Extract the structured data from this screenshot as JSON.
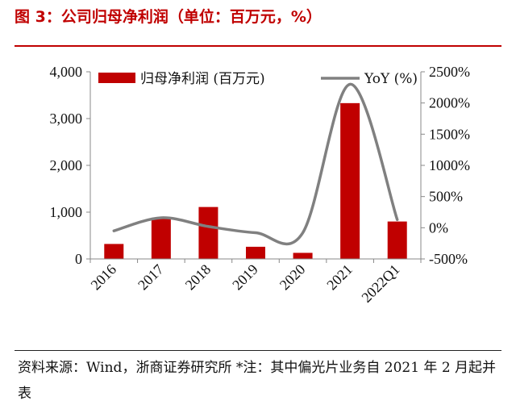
{
  "header": {
    "title": "图 3：公司归母净利润（单位：百万元，%）"
  },
  "chart_data": {
    "type": "bar+line",
    "title": "图 3：公司归母净利润（单位：百万元，%）",
    "categories": [
      "2016",
      "2017",
      "2018",
      "2019",
      "2020",
      "2021",
      "2022Q1"
    ],
    "series": [
      {
        "name": "归母净利润 (百万元)",
        "type": "bar",
        "axis": "left",
        "values": [
          320,
          880,
          1110,
          260,
          130,
          3330,
          800
        ],
        "color": "#c00000"
      },
      {
        "name": "YoY (%)",
        "type": "line",
        "axis": "right",
        "values": [
          -50,
          160,
          20,
          -80,
          -80,
          2300,
          130
        ],
        "color": "#808080"
      }
    ],
    "left_axis": {
      "min": 0,
      "max": 4000,
      "ticks": [
        "0",
        "1,000",
        "2,000",
        "3,000",
        "4,000"
      ]
    },
    "right_axis": {
      "min": -500,
      "max": 2500,
      "ticks": [
        "-500%",
        "0%",
        "500%",
        "1000%",
        "1500%",
        "2000%",
        "2500%"
      ]
    },
    "legend": {
      "position": "top"
    }
  },
  "footer": {
    "source": "资料来源：Wind，浙商证券研究所 *注：其中偏光片业务自 2021 年 2 月起并表"
  }
}
